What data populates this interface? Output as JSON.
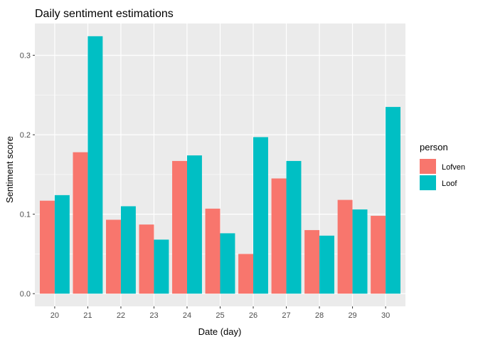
{
  "chart_data": {
    "type": "bar",
    "title": "Daily sentiment estimations",
    "xlabel": "Date (day)",
    "ylabel": "Sentiment score",
    "categories": [
      "20",
      "21",
      "22",
      "23",
      "24",
      "25",
      "26",
      "27",
      "28",
      "29",
      "30"
    ],
    "yticks": [
      0.0,
      0.1,
      0.2,
      0.3
    ],
    "ytick_labels": [
      "0.0",
      "0.1",
      "0.2",
      "0.3"
    ],
    "ylim": [
      -0.016,
      0.34
    ],
    "grid": true,
    "legend": {
      "title": "person",
      "position": "right"
    },
    "series": [
      {
        "name": "Lofven",
        "color": "#F8766D",
        "values": [
          0.117,
          0.178,
          0.093,
          0.087,
          0.167,
          0.107,
          0.05,
          0.145,
          0.08,
          0.118,
          0.098
        ]
      },
      {
        "name": "Loof",
        "color": "#00BFC4",
        "values": [
          0.124,
          0.324,
          0.11,
          0.068,
          0.174,
          0.076,
          0.197,
          0.167,
          0.073,
          0.106,
          0.235
        ]
      }
    ],
    "panel_color": "#EBEBEB",
    "grid_color": "#FFFFFF"
  }
}
